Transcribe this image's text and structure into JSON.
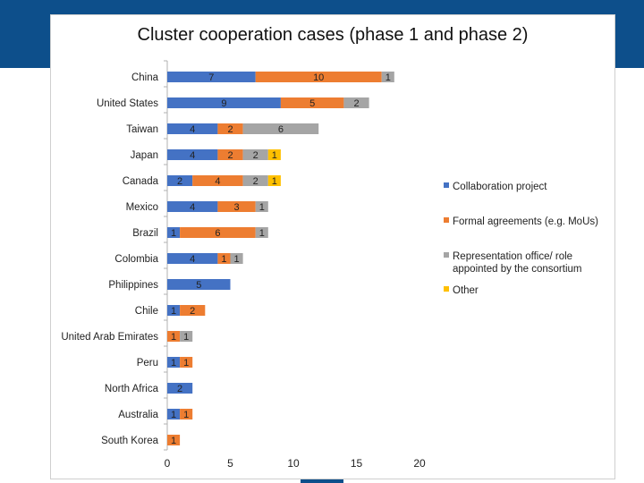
{
  "chart_data": {
    "type": "bar",
    "orientation": "horizontal",
    "stacked": true,
    "title": "Cluster cooperation cases (phase 1 and phase 2)",
    "categories": [
      "China",
      "United States",
      "Taiwan",
      "Japan",
      "Canada",
      "Mexico",
      "Brazil",
      "Colombia",
      "Philippines",
      "Chile",
      "United Arab Emirates",
      "Peru",
      "North Africa",
      "Australia",
      "South Korea"
    ],
    "series": [
      {
        "name": "Collaboration project",
        "color": "#4472c4",
        "values": [
          7,
          9,
          4,
          4,
          2,
          4,
          1,
          4,
          5,
          1,
          0,
          1,
          2,
          1,
          0
        ]
      },
      {
        "name": "Formal agreements (e.g. MoUs)",
        "color": "#ed7d31",
        "values": [
          10,
          5,
          2,
          2,
          4,
          3,
          6,
          1,
          0,
          2,
          1,
          1,
          0,
          1,
          1
        ]
      },
      {
        "name": [
          "Representation office/ role",
          "appointed by the consortium"
        ],
        "color": "#a5a5a5",
        "values": [
          1,
          2,
          6,
          2,
          2,
          1,
          1,
          1,
          0,
          0,
          1,
          0,
          0,
          0,
          0
        ]
      },
      {
        "name": "Other",
        "color": "#ffc000",
        "values": [
          0,
          0,
          0,
          1,
          1,
          0,
          0,
          0,
          0,
          0,
          0,
          0,
          0,
          0,
          0
        ]
      }
    ],
    "xlim": [
      0,
      20
    ],
    "xticks": [
      0,
      5,
      10,
      15,
      20
    ],
    "grid": false,
    "legend_position": "right"
  }
}
